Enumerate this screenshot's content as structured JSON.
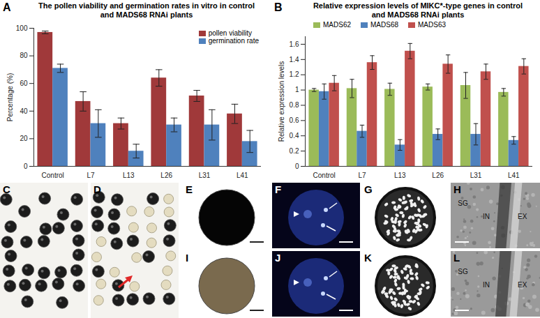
{
  "chart_data": [
    {
      "type": "bar",
      "panel_label": "A",
      "title": "The  pollen viability and germination rates in vitro in control and MADS68 RNAi plants",
      "categories": [
        "Control",
        "L7",
        "L13",
        "L26",
        "L31",
        "L41"
      ],
      "series": [
        {
          "name": "pollen viability",
          "color": "#a0393a",
          "values": [
            97,
            47,
            31,
            64,
            51,
            38
          ],
          "errors": [
            1,
            7,
            4,
            6,
            4,
            7
          ]
        },
        {
          "name": "germination rate",
          "color": "#4f81bd",
          "values": [
            71,
            31,
            11,
            30,
            30,
            18
          ],
          "errors": [
            3,
            10,
            5,
            5,
            11,
            8
          ]
        }
      ],
      "y_label": "Percentage (%)",
      "ylim": [
        0,
        100
      ],
      "yticks": [
        0,
        20,
        40,
        60,
        80,
        100
      ],
      "grid": false,
      "legend": "top-right"
    },
    {
      "type": "bar",
      "panel_label": "B",
      "title": "Relative expression levels of MIKC*-type genes in control and MADS68 RNAi plants",
      "categories": [
        "Control",
        "L7",
        "L13",
        "L26",
        "L31",
        "L41"
      ],
      "series": [
        {
          "name": "MADS62",
          "color": "#9bbb59",
          "values": [
            1.0,
            1.02,
            1.01,
            1.04,
            1.06,
            0.97
          ],
          "errors": [
            0.02,
            0.12,
            0.08,
            0.04,
            0.17,
            0.05
          ]
        },
        {
          "name": "MADS68",
          "color": "#4f81bd",
          "values": [
            0.98,
            0.46,
            0.28,
            0.42,
            0.42,
            0.34
          ],
          "errors": [
            0.1,
            0.08,
            0.07,
            0.07,
            0.14,
            0.05
          ]
        },
        {
          "name": "MADS63",
          "color": "#c0504d",
          "values": [
            1.09,
            1.36,
            1.51,
            1.34,
            1.24,
            1.31
          ],
          "errors": [
            0.1,
            0.09,
            0.1,
            0.12,
            0.1,
            0.1
          ]
        }
      ],
      "y_label": "Relative expression levels",
      "ylim": [
        0,
        1.7
      ],
      "yticks": [
        0,
        0.2,
        0.4,
        0.6,
        0.8,
        1,
        1.2,
        1.4,
        1.6
      ],
      "grid": false,
      "legend": "top"
    }
  ],
  "image_panels": [
    {
      "label": "C"
    },
    {
      "label": "D"
    },
    {
      "label": "E"
    },
    {
      "label": "F"
    },
    {
      "label": "G"
    },
    {
      "label": "H",
      "texts": [
        "SG",
        "IN",
        "EX"
      ]
    },
    {
      "label": "I"
    },
    {
      "label": "J"
    },
    {
      "label": "K"
    },
    {
      "label": "L",
      "texts": [
        "SG",
        "IN",
        "EX"
      ]
    }
  ]
}
